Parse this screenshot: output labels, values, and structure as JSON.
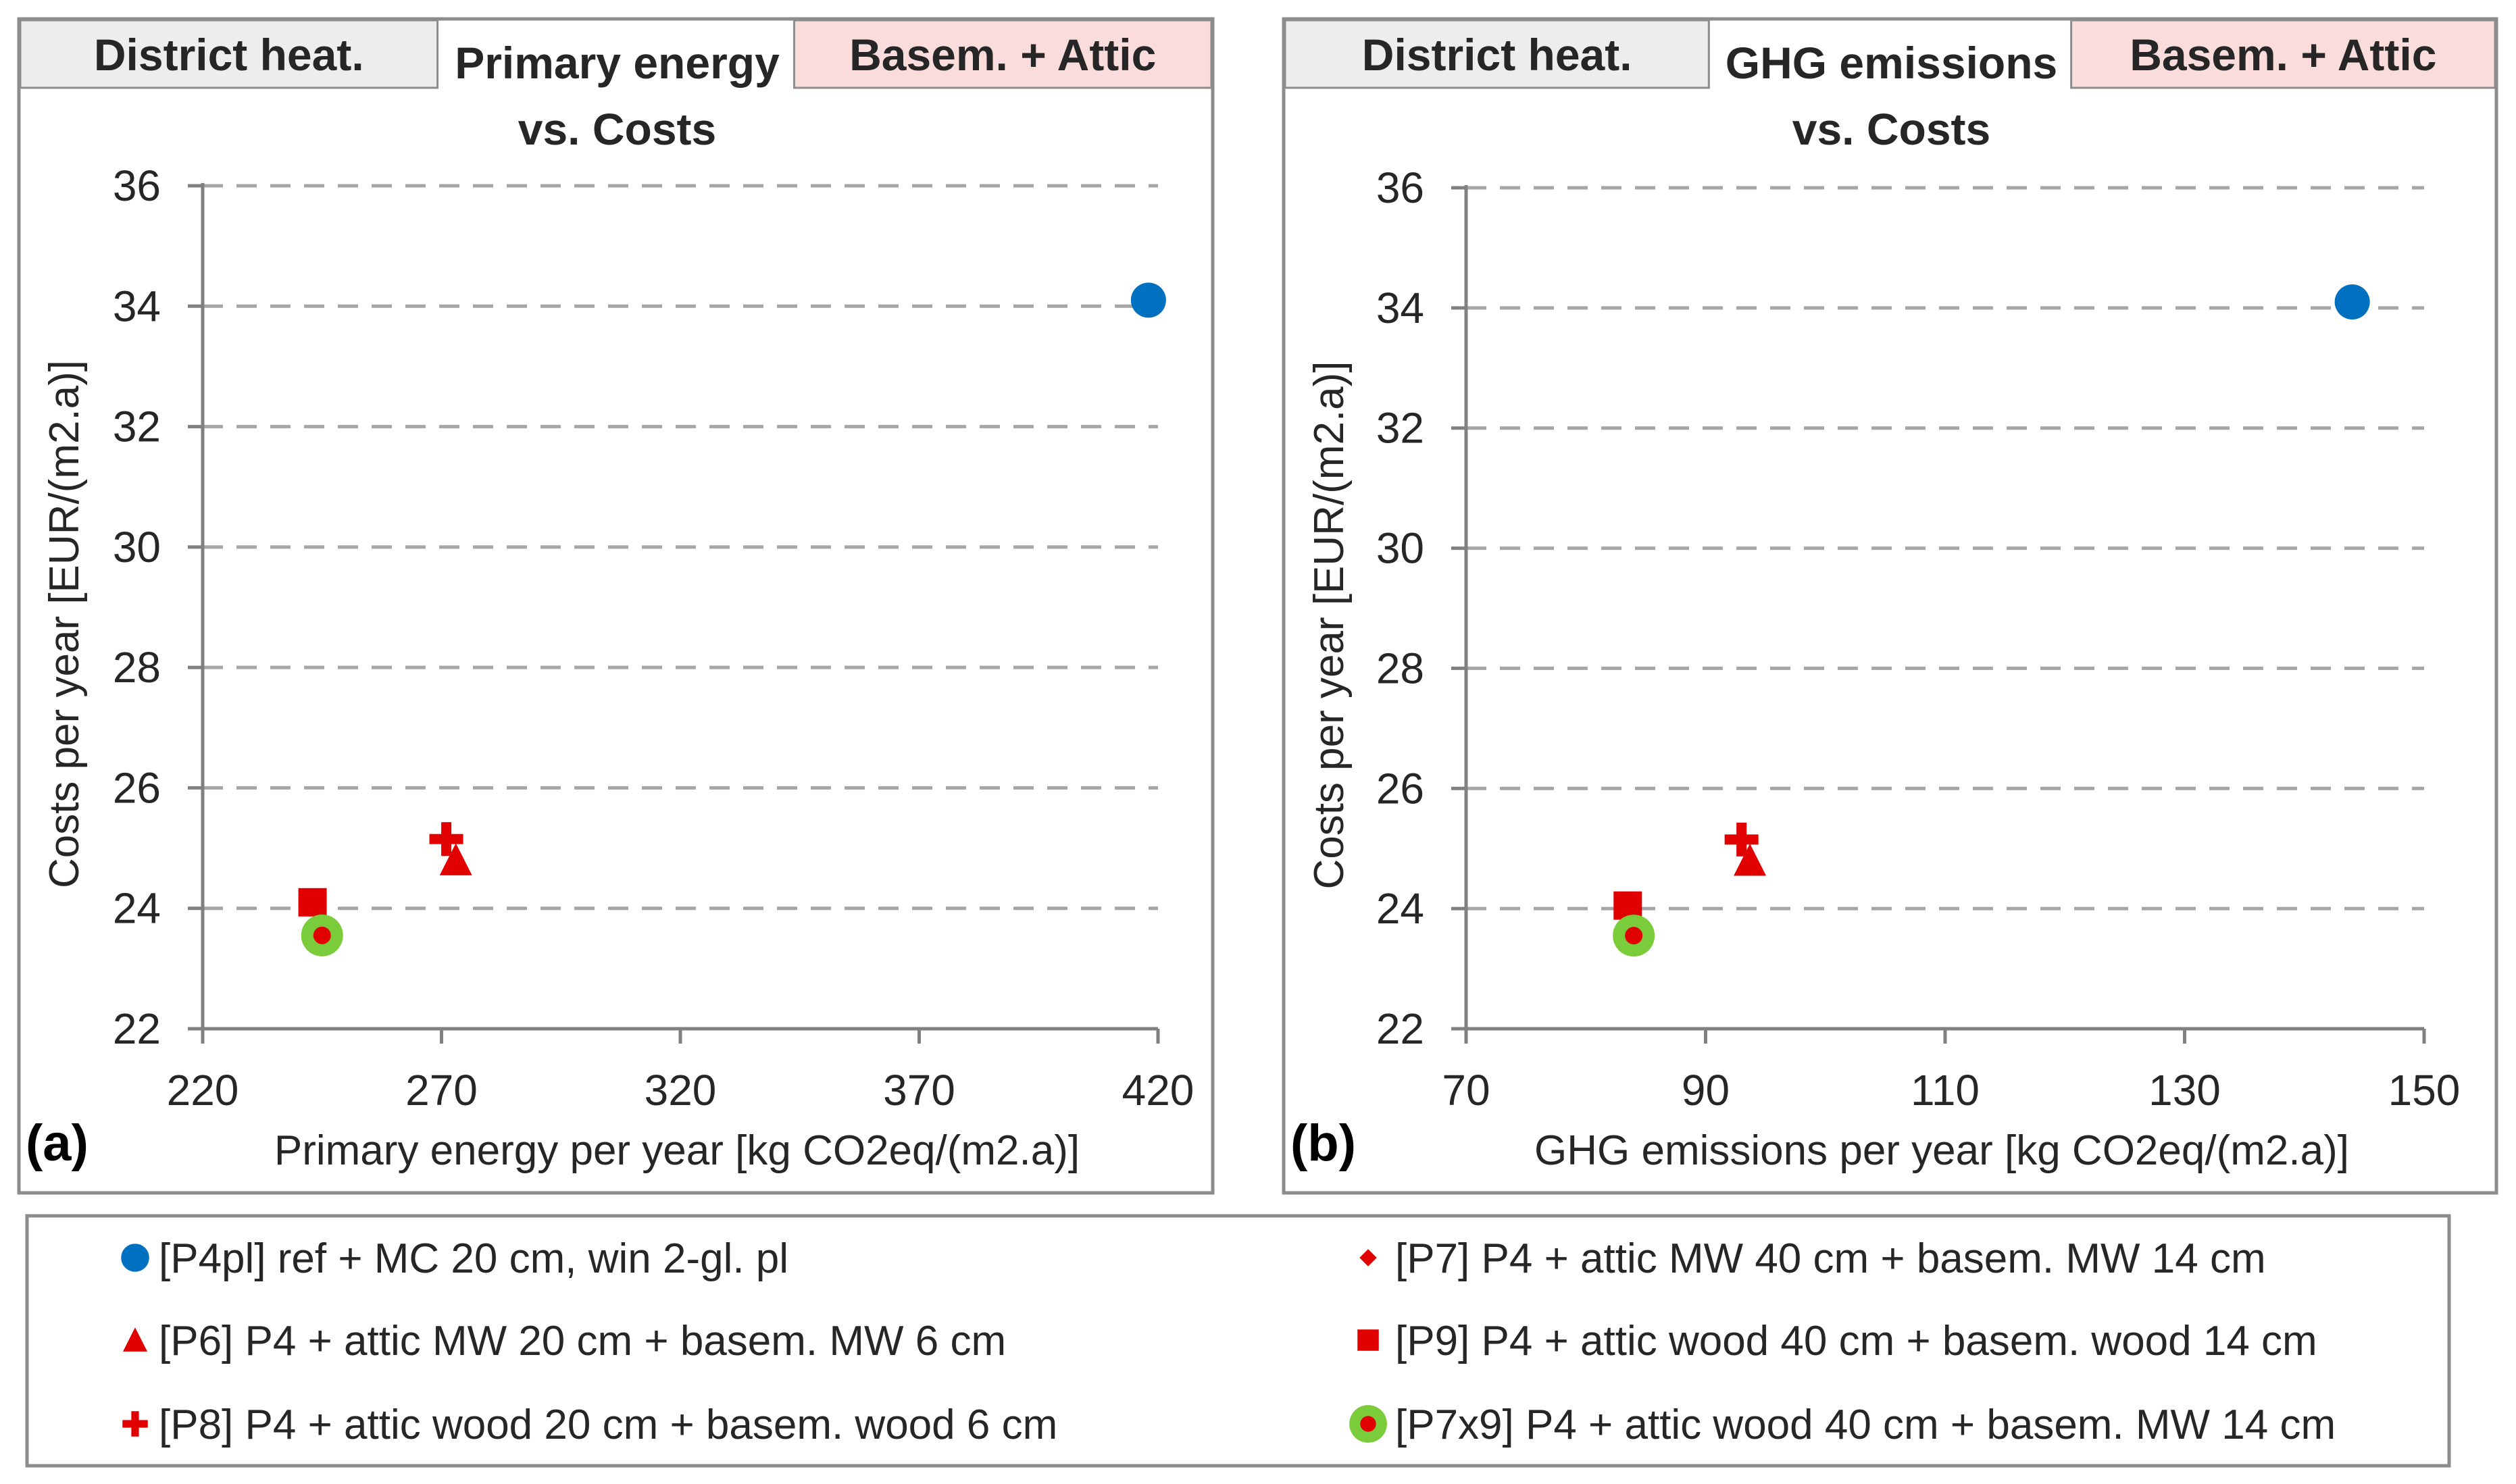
{
  "chart_data": [
    {
      "type": "scatter",
      "panel_label": "(a)",
      "tabs": {
        "left": "District heat.",
        "right": "Basem. + Attic"
      },
      "title_lines": [
        "Primary energy",
        "vs. Costs"
      ],
      "xlabel": "Primary energy per year  [kg CO2eq/(m2.a)]",
      "ylabel": "Costs per year [EUR/(m2.a)]",
      "xlim": [
        220,
        420
      ],
      "ylim": [
        22,
        36
      ],
      "xticks": [
        220,
        270,
        320,
        370,
        420
      ],
      "yticks": [
        22,
        24,
        26,
        28,
        30,
        32,
        34,
        36
      ],
      "grid": "horizontal-dashed",
      "series": [
        {
          "name": "[P4pl]",
          "marker": "circle-blue",
          "x": 418,
          "y": 34.1
        },
        {
          "name": "[P6]",
          "marker": "triangle-red",
          "x": 273,
          "y": 24.8
        },
        {
          "name": "[P8]",
          "marker": "cross-red",
          "x": 271,
          "y": 25.15
        },
        {
          "name": "[P7]",
          "marker": "diamond-red",
          "x": 245,
          "y": 23.65
        },
        {
          "name": "[P9]",
          "marker": "square-red",
          "x": 243,
          "y": 24.1
        },
        {
          "name": "[P7x9]",
          "marker": "ring-green",
          "x": 245,
          "y": 23.55
        }
      ]
    },
    {
      "type": "scatter",
      "panel_label": "(b)",
      "tabs": {
        "left": "District heat.",
        "right": "Basem. + Attic"
      },
      "title_lines": [
        "GHG emissions",
        "vs. Costs"
      ],
      "xlabel": "GHG emissions per year  [kg CO2eq/(m2.a)]",
      "ylabel": "Costs per year [EUR/(m2.a)]",
      "xlim": [
        70,
        150
      ],
      "ylim": [
        22,
        36
      ],
      "xticks": [
        70,
        90,
        110,
        130,
        150
      ],
      "yticks": [
        22,
        24,
        26,
        28,
        30,
        32,
        34,
        36
      ],
      "grid": "horizontal-dashed",
      "series": [
        {
          "name": "[P4pl]",
          "marker": "circle-blue",
          "x": 144,
          "y": 34.1
        },
        {
          "name": "[P6]",
          "marker": "triangle-red",
          "x": 93.7,
          "y": 24.8
        },
        {
          "name": "[P8]",
          "marker": "cross-red",
          "x": 93,
          "y": 25.15
        },
        {
          "name": "[P7]",
          "marker": "diamond-red",
          "x": 84,
          "y": 23.65
        },
        {
          "name": "[P9]",
          "marker": "square-red",
          "x": 83.5,
          "y": 24.05
        },
        {
          "name": "[P7x9]",
          "marker": "ring-green",
          "x": 84,
          "y": 23.55
        }
      ]
    }
  ],
  "legend": {
    "entries": [
      {
        "marker": "circle-blue",
        "label": "[P4pl] ref + MC 20 cm, win 2-gl. pl"
      },
      {
        "marker": "diamond-red",
        "label": "[P7] P4 + attic MW 40 cm + basem. MW 14 cm"
      },
      {
        "marker": "triangle-red",
        "label": "[P6] P4 + attic MW 20 cm + basem. MW 6 cm"
      },
      {
        "marker": "square-red",
        "label": "[P9] P4 + attic wood 40 cm + basem. wood 14 cm"
      },
      {
        "marker": "cross-red",
        "label": "[P8] P4 + attic wood 20 cm + basem. wood 6 cm"
      },
      {
        "marker": "ring-green",
        "label": "[P7x9] P4 + attic wood 40 cm + basem. MW 14 cm"
      }
    ]
  },
  "colors": {
    "blue": "#0070C0",
    "red": "#E00000",
    "green": "#7ACC3A",
    "tab_gray": "#EDEDED",
    "tab_pink": "#FADCDC",
    "frame": "#8C8C8C",
    "axis": "#808080",
    "grid": "#A6A6A6",
    "text": "#262626"
  }
}
